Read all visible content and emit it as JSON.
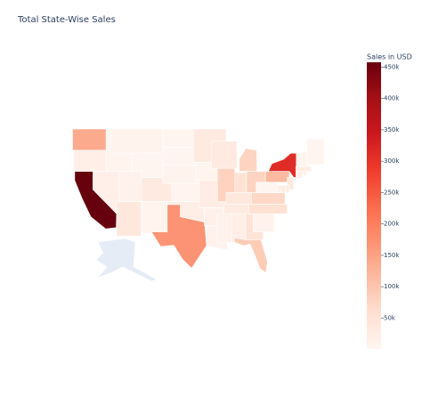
{
  "chart_data": {
    "type": "choropleth",
    "title": "Total State-Wise Sales",
    "colorbar_title": "Sales in USD",
    "values": [
      138641,
      17431,
      457688,
      16729,
      4382,
      5589,
      1603,
      11220,
      32108,
      35282,
      4784,
      920,
      1316,
      7465,
      2914,
      19683,
      170188,
      29863,
      4580,
      22205,
      11678,
      9217,
      32114,
      80166,
      76270,
      53555,
      78258,
      36592,
      30662,
      10771,
      19511,
      49096,
      89474,
      8482,
      55603,
      70637,
      1210,
      116512,
      310876,
      35764,
      27451,
      23706,
      2865,
      13384,
      22628,
      28634,
      8929,
      7293,
      1271
    ],
    "zlim": [
      920,
      457688
    ],
    "zticks": [
      {
        "value": 50000,
        "label": "50k"
      },
      {
        "value": 100000,
        "label": "100k"
      },
      {
        "value": 150000,
        "label": "150k"
      },
      {
        "value": 200000,
        "label": "200k"
      },
      {
        "value": 250000,
        "label": "250k"
      },
      {
        "value": 300000,
        "label": "300k"
      },
      {
        "value": 350000,
        "label": "350k"
      },
      {
        "value": 400000,
        "label": "400k"
      },
      {
        "value": 450000,
        "label": "450k"
      }
    ],
    "colorscale": [
      "#fff5f0",
      "#fee0d2",
      "#fcbba1",
      "#fc9272",
      "#fb6a4a",
      "#ef3b2c",
      "#cb181d",
      "#a50f15",
      "#67000d"
    ]
  }
}
